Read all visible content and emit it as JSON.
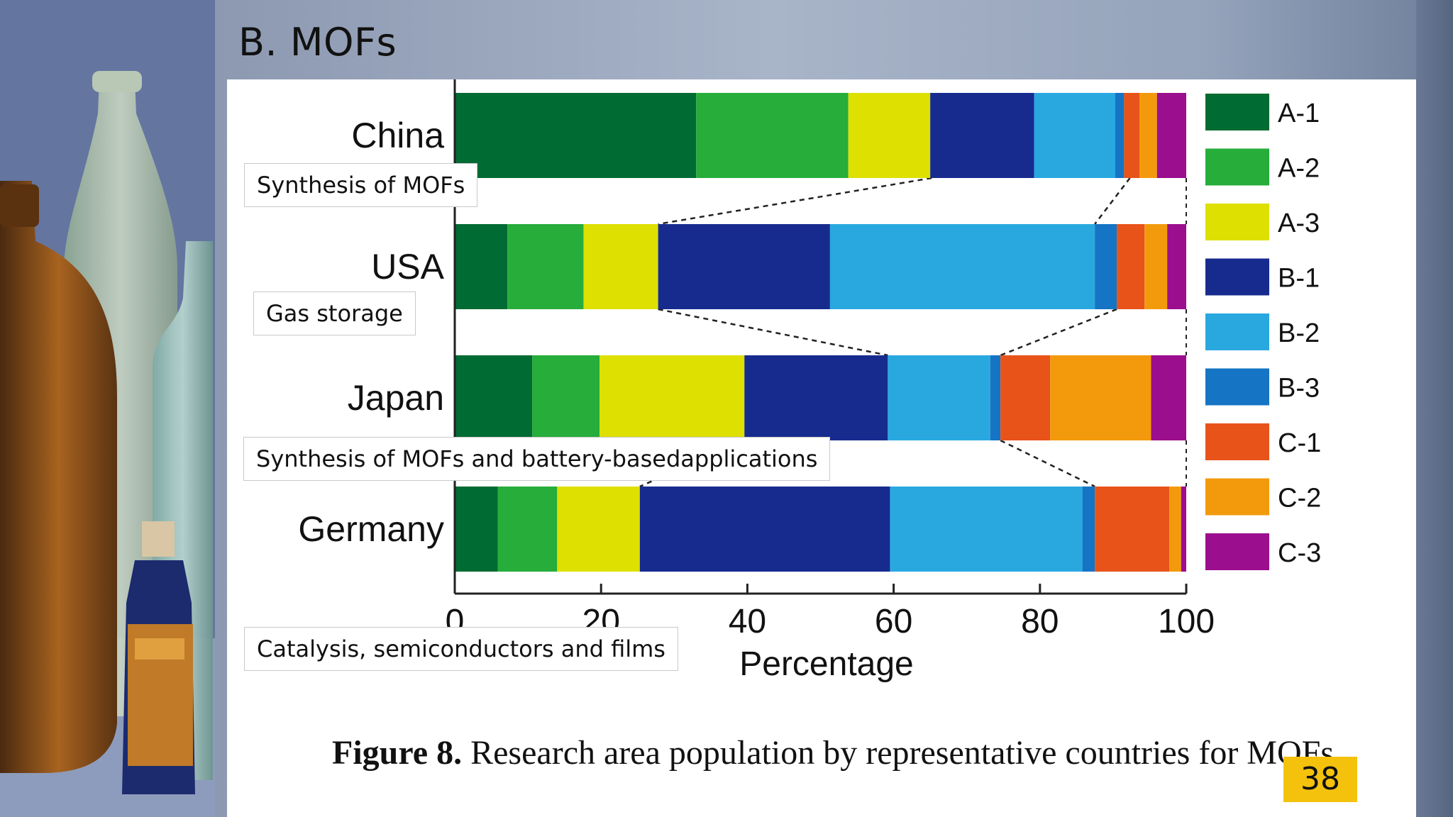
{
  "slide": {
    "title": "B. MOFs",
    "page_number": "38"
  },
  "caption": {
    "bold": "Figure 8.",
    "text": " Research area population by representative countries for MOFs"
  },
  "callouts": [
    {
      "text": "Synthesis of MOFs"
    },
    {
      "text": "Gas storage"
    },
    {
      "text": "Synthesis of MOFs and battery-basedapplications"
    },
    {
      "text": "Catalysis, semiconductors and films"
    }
  ],
  "chart_data": {
    "type": "bar",
    "orientation": "horizontal",
    "stacked": true,
    "xlabel": "Percentage",
    "xlim": [
      0,
      100
    ],
    "xticks": [
      0,
      20,
      40,
      60,
      80,
      100
    ],
    "categories": [
      "China",
      "USA",
      "Japan",
      "Germany"
    ],
    "series": [
      {
        "name": "A-1",
        "color": "#006b33",
        "values": [
          33,
          7.2,
          10.6,
          5.9
        ]
      },
      {
        "name": "A-2",
        "color": "#26ad3a",
        "values": [
          20.8,
          10.4,
          9.2,
          8.1
        ]
      },
      {
        "name": "A-3",
        "color": "#dde000",
        "values": [
          11.2,
          10.2,
          19.8,
          11.3
        ]
      },
      {
        "name": "B-1",
        "color": "#172b8f",
        "values": [
          14.2,
          23.5,
          19.6,
          34.2
        ]
      },
      {
        "name": "B-2",
        "color": "#29a8e0",
        "values": [
          11.1,
          36.2,
          14,
          26.3
        ]
      },
      {
        "name": "B-3",
        "color": "#1574c4",
        "values": [
          1.2,
          3,
          1.4,
          1.7
        ]
      },
      {
        "name": "C-1",
        "color": "#e8531a",
        "values": [
          2.1,
          3.8,
          6.8,
          10.2
        ]
      },
      {
        "name": "C-2",
        "color": "#f39a0c",
        "values": [
          2.4,
          3.1,
          13.8,
          1.6
        ]
      },
      {
        "name": "C-3",
        "color": "#9b0e8e",
        "values": [
          4,
          2.6,
          4.8,
          0.7
        ]
      }
    ],
    "connectors": [
      {
        "from": "China",
        "to": "USA",
        "boundaries": [
          65.2,
          92.3
        ]
      },
      {
        "from": "USA",
        "to": "Japan",
        "boundaries": [
          27.8,
          90.5
        ]
      },
      {
        "from": "Japan",
        "to": "Germany",
        "boundaries": [
          39.6,
          74.6
        ]
      }
    ],
    "legend_position": "right"
  }
}
